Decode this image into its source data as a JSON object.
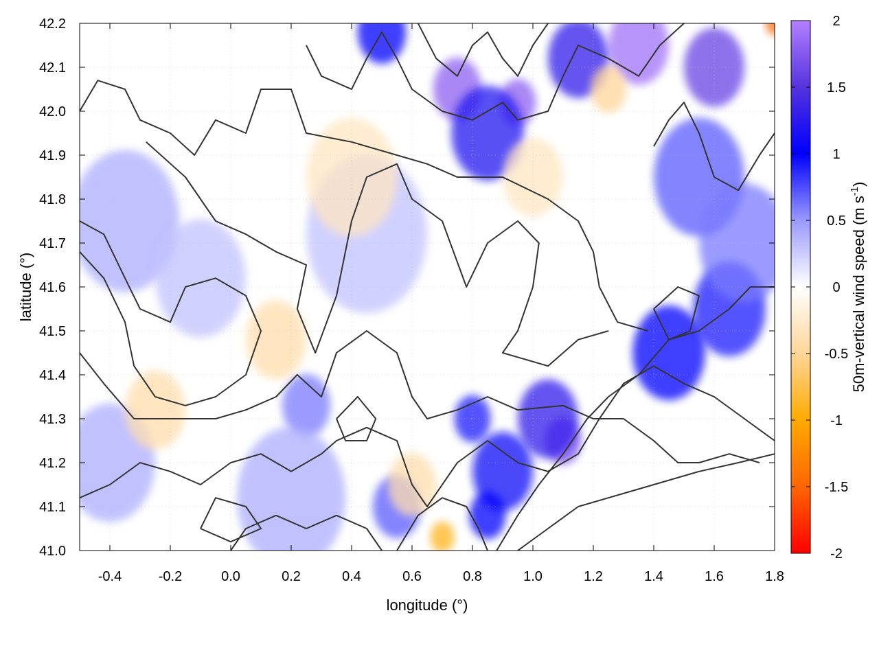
{
  "chart_data": {
    "type": "heatmap",
    "xlabel": "longitude (°)",
    "ylabel": "latitude (°)",
    "xlim": [
      -0.5,
      1.8
    ],
    "ylim": [
      41.0,
      42.2
    ],
    "x_ticks": [
      "-0.4",
      "-0.2",
      "0.0",
      "0.2",
      "0.4",
      "0.6",
      "0.8",
      "1.0",
      "1.2",
      "1.4",
      "1.6",
      "1.8"
    ],
    "x_tick_values": [
      -0.4,
      -0.2,
      0.0,
      0.2,
      0.4,
      0.6,
      0.8,
      1.0,
      1.2,
      1.4,
      1.6,
      1.8
    ],
    "y_ticks": [
      "41.0",
      "41.1",
      "41.2",
      "41.3",
      "41.4",
      "41.5",
      "41.6",
      "41.7",
      "41.8",
      "41.9",
      "42.0",
      "42.1",
      "42.2"
    ],
    "y_tick_values": [
      41.0,
      41.1,
      41.2,
      41.3,
      41.4,
      41.5,
      41.6,
      41.7,
      41.8,
      41.9,
      42.0,
      42.1,
      42.2
    ],
    "grid": true,
    "colorbar": {
      "label_main": "50m-vertical wind speed (m s",
      "label_sup": "-1",
      "label_end": ")",
      "range": [
        -2,
        2
      ],
      "ticks": [
        "2",
        "1.5",
        "1",
        "0.5",
        "0",
        "-0.5",
        "-1",
        "-1.5",
        "-2"
      ],
      "tick_values": [
        2,
        1.5,
        1,
        0.5,
        0,
        -0.5,
        -1,
        -1.5,
        -2
      ],
      "colors": [
        {
          "value": -2,
          "color": "#ff0000"
        },
        {
          "value": -1.5,
          "color": "#ff6600"
        },
        {
          "value": -1,
          "color": "#ffaa00"
        },
        {
          "value": -0.5,
          "color": "#ffd699"
        },
        {
          "value": 0,
          "color": "#ffffff"
        },
        {
          "value": 0.5,
          "color": "#9999ff"
        },
        {
          "value": 1,
          "color": "#0000ff"
        },
        {
          "value": 1.5,
          "color": "#5533dd"
        },
        {
          "value": 2,
          "color": "#b380ff"
        }
      ]
    },
    "contours": {
      "color": "#333333",
      "lines": [
        [
          [
            -0.5,
            42.0
          ],
          [
            -0.44,
            42.07
          ],
          [
            -0.35,
            42.05
          ],
          [
            -0.3,
            41.98
          ],
          [
            -0.2,
            41.95
          ],
          [
            -0.12,
            41.9
          ],
          [
            -0.05,
            41.98
          ],
          [
            0.05,
            41.95
          ],
          [
            0.1,
            42.05
          ],
          [
            0.2,
            42.05
          ],
          [
            0.25,
            41.95
          ],
          [
            0.4,
            41.93
          ],
          [
            0.55,
            41.9
          ],
          [
            0.65,
            41.88
          ],
          [
            0.75,
            41.85
          ],
          [
            0.9,
            41.85
          ],
          [
            1.05,
            41.8
          ],
          [
            1.15,
            41.75
          ],
          [
            1.2,
            41.68
          ],
          [
            1.22,
            41.6
          ],
          [
            1.28,
            41.52
          ],
          [
            1.38,
            41.5
          ]
        ],
        [
          [
            -0.28,
            41.93
          ],
          [
            -0.15,
            41.85
          ],
          [
            -0.05,
            41.75
          ],
          [
            0.05,
            41.72
          ],
          [
            0.15,
            41.68
          ],
          [
            0.25,
            41.65
          ],
          [
            0.22,
            41.55
          ],
          [
            0.28,
            41.45
          ],
          [
            0.35,
            41.58
          ],
          [
            0.4,
            41.75
          ],
          [
            0.45,
            41.85
          ],
          [
            0.55,
            41.88
          ],
          [
            0.6,
            41.8
          ],
          [
            0.7,
            41.75
          ],
          [
            0.78,
            41.6
          ],
          [
            0.85,
            41.7
          ],
          [
            0.95,
            41.75
          ],
          [
            1.02,
            41.7
          ],
          [
            1.0,
            41.6
          ],
          [
            0.95,
            41.5
          ],
          [
            0.9,
            41.45
          ],
          [
            1.05,
            41.42
          ],
          [
            1.15,
            41.48
          ],
          [
            1.25,
            41.5
          ]
        ],
        [
          [
            -0.5,
            41.75
          ],
          [
            -0.42,
            41.72
          ],
          [
            -0.35,
            41.62
          ],
          [
            -0.3,
            41.55
          ],
          [
            -0.2,
            41.52
          ],
          [
            -0.15,
            41.6
          ],
          [
            -0.05,
            41.62
          ],
          [
            0.05,
            41.58
          ],
          [
            0.1,
            41.5
          ],
          [
            0.05,
            41.4
          ],
          [
            -0.05,
            41.35
          ],
          [
            -0.15,
            41.33
          ],
          [
            -0.25,
            41.35
          ],
          [
            -0.32,
            41.42
          ],
          [
            -0.35,
            41.52
          ],
          [
            -0.42,
            41.62
          ],
          [
            -0.5,
            41.68
          ]
        ],
        [
          [
            -0.5,
            41.45
          ],
          [
            -0.42,
            41.38
          ],
          [
            -0.32,
            41.3
          ],
          [
            -0.2,
            41.3
          ],
          [
            -0.05,
            41.3
          ],
          [
            0.05,
            41.32
          ],
          [
            0.15,
            41.35
          ],
          [
            0.22,
            41.4
          ],
          [
            0.3,
            41.35
          ],
          [
            0.35,
            41.45
          ],
          [
            0.45,
            41.5
          ],
          [
            0.55,
            41.45
          ],
          [
            0.6,
            41.35
          ],
          [
            0.65,
            41.3
          ],
          [
            0.75,
            41.32
          ],
          [
            0.85,
            41.35
          ],
          [
            0.95,
            41.32
          ],
          [
            1.1,
            41.33
          ],
          [
            1.2,
            41.3
          ],
          [
            1.3,
            41.3
          ],
          [
            1.4,
            41.25
          ],
          [
            1.48,
            41.2
          ],
          [
            1.55,
            41.2
          ],
          [
            1.65,
            41.22
          ],
          [
            1.75,
            41.2
          ]
        ],
        [
          [
            -0.5,
            41.12
          ],
          [
            -0.4,
            41.15
          ],
          [
            -0.3,
            41.2
          ],
          [
            -0.2,
            41.18
          ],
          [
            -0.1,
            41.15
          ],
          [
            0.0,
            41.2
          ],
          [
            0.1,
            41.22
          ],
          [
            0.2,
            41.18
          ],
          [
            0.3,
            41.22
          ],
          [
            0.35,
            41.25
          ],
          [
            0.45,
            41.28
          ],
          [
            0.55,
            41.25
          ],
          [
            0.6,
            41.15
          ],
          [
            0.65,
            41.1
          ],
          [
            0.75,
            41.2
          ],
          [
            0.85,
            41.25
          ],
          [
            0.95,
            41.2
          ],
          [
            1.05,
            41.18
          ],
          [
            1.15,
            41.22
          ],
          [
            1.22,
            41.3
          ],
          [
            1.3,
            41.38
          ],
          [
            1.4,
            41.42
          ],
          [
            1.5,
            41.38
          ],
          [
            1.6,
            41.35
          ],
          [
            1.7,
            41.3
          ],
          [
            1.8,
            41.25
          ]
        ],
        [
          [
            0.0,
            41.0
          ],
          [
            0.05,
            41.05
          ],
          [
            0.15,
            41.08
          ],
          [
            0.25,
            41.05
          ],
          [
            0.35,
            41.08
          ],
          [
            0.45,
            41.05
          ],
          [
            0.5,
            41.0
          ]
        ],
        [
          [
            0.55,
            41.0
          ],
          [
            0.62,
            41.08
          ],
          [
            0.7,
            41.12
          ],
          [
            0.78,
            41.1
          ],
          [
            0.82,
            41.05
          ],
          [
            0.85,
            41.0
          ]
        ],
        [
          [
            0.88,
            41.0
          ],
          [
            0.95,
            41.08
          ],
          [
            1.02,
            41.15
          ],
          [
            1.1,
            41.22
          ],
          [
            1.18,
            41.3
          ],
          [
            1.25,
            41.35
          ],
          [
            1.35,
            41.4
          ],
          [
            1.45,
            41.48
          ],
          [
            1.55,
            41.5
          ],
          [
            1.65,
            41.55
          ],
          [
            1.72,
            41.6
          ],
          [
            1.8,
            41.6
          ]
        ],
        [
          [
            0.95,
            41.0
          ],
          [
            1.05,
            41.05
          ],
          [
            1.15,
            41.1
          ],
          [
            1.25,
            41.12
          ],
          [
            1.4,
            41.15
          ],
          [
            1.55,
            41.18
          ],
          [
            1.68,
            41.2
          ],
          [
            1.8,
            41.22
          ]
        ],
        [
          [
            0.25,
            42.15
          ],
          [
            0.3,
            42.08
          ],
          [
            0.4,
            42.05
          ],
          [
            0.45,
            42.12
          ],
          [
            0.5,
            42.18
          ],
          [
            0.55,
            42.12
          ],
          [
            0.6,
            42.05
          ],
          [
            0.7,
            42.0
          ],
          [
            0.8,
            41.98
          ],
          [
            0.9,
            42.02
          ],
          [
            0.95,
            41.98
          ],
          [
            1.05,
            42.0
          ],
          [
            1.1,
            42.08
          ],
          [
            1.15,
            42.15
          ],
          [
            1.25,
            42.12
          ],
          [
            1.35,
            42.08
          ],
          [
            1.42,
            42.15
          ],
          [
            1.5,
            42.2
          ]
        ],
        [
          [
            0.62,
            42.2
          ],
          [
            0.68,
            42.12
          ],
          [
            0.75,
            42.08
          ],
          [
            0.8,
            42.15
          ],
          [
            0.85,
            42.18
          ],
          [
            0.9,
            42.12
          ],
          [
            0.95,
            42.08
          ],
          [
            1.0,
            42.15
          ],
          [
            1.05,
            42.2
          ]
        ],
        [
          [
            1.4,
            41.92
          ],
          [
            1.45,
            41.98
          ],
          [
            1.5,
            42.02
          ],
          [
            1.55,
            41.95
          ],
          [
            1.6,
            41.85
          ],
          [
            1.68,
            41.82
          ],
          [
            1.75,
            41.9
          ],
          [
            1.8,
            41.95
          ]
        ],
        [
          [
            -0.1,
            41.05
          ],
          [
            -0.05,
            41.12
          ],
          [
            0.05,
            41.1
          ],
          [
            0.1,
            41.05
          ],
          [
            0.0,
            41.02
          ],
          [
            -0.1,
            41.05
          ]
        ],
        [
          [
            0.35,
            41.3
          ],
          [
            0.42,
            41.35
          ],
          [
            0.48,
            41.3
          ],
          [
            0.45,
            41.25
          ],
          [
            0.38,
            41.25
          ],
          [
            0.35,
            41.3
          ]
        ],
        [
          [
            1.4,
            41.55
          ],
          [
            1.48,
            41.6
          ],
          [
            1.55,
            41.58
          ],
          [
            1.52,
            41.5
          ],
          [
            1.45,
            41.48
          ],
          [
            1.4,
            41.55
          ]
        ]
      ]
    },
    "features": [
      {
        "x": 0.75,
        "y": 42.05,
        "v": 1.8,
        "r": 0.08
      },
      {
        "x": 0.95,
        "y": 42.02,
        "v": 1.8,
        "r": 0.06
      },
      {
        "x": 1.35,
        "y": 42.15,
        "v": 1.9,
        "r": 0.1
      },
      {
        "x": 1.6,
        "y": 42.1,
        "v": 1.6,
        "r": 0.1
      },
      {
        "x": 0.85,
        "y": 41.95,
        "v": 1.2,
        "r": 0.12
      },
      {
        "x": 1.15,
        "y": 42.12,
        "v": 1.3,
        "r": 0.1
      },
      {
        "x": 0.5,
        "y": 42.18,
        "v": 1.0,
        "r": 0.08
      },
      {
        "x": 1.1,
        "y": 41.25,
        "v": 1.7,
        "r": 0.06
      },
      {
        "x": 1.05,
        "y": 41.3,
        "v": 1.3,
        "r": 0.1
      },
      {
        "x": 0.9,
        "y": 41.18,
        "v": 1.1,
        "r": 0.1
      },
      {
        "x": 0.85,
        "y": 41.08,
        "v": 1.0,
        "r": 0.06
      },
      {
        "x": 1.45,
        "y": 41.45,
        "v": 1.0,
        "r": 0.12
      },
      {
        "x": 1.65,
        "y": 41.55,
        "v": 0.9,
        "r": 0.12
      },
      {
        "x": 1.55,
        "y": 41.85,
        "v": 0.7,
        "r": 0.15
      },
      {
        "x": 1.7,
        "y": 41.7,
        "v": 0.6,
        "r": 0.15
      },
      {
        "x": 0.8,
        "y": 41.3,
        "v": 0.9,
        "r": 0.06
      },
      {
        "x": 0.55,
        "y": 41.1,
        "v": 0.7,
        "r": 0.08
      },
      {
        "x": 0.25,
        "y": 41.33,
        "v": 0.6,
        "r": 0.08
      },
      {
        "x": -0.35,
        "y": 41.75,
        "v": 0.4,
        "r": 0.18
      },
      {
        "x": -0.4,
        "y": 41.2,
        "v": 0.4,
        "r": 0.15
      },
      {
        "x": 0.2,
        "y": 41.12,
        "v": 0.4,
        "r": 0.18
      },
      {
        "x": 0.45,
        "y": 41.72,
        "v": 0.3,
        "r": 0.2
      },
      {
        "x": -0.1,
        "y": 41.62,
        "v": 0.3,
        "r": 0.15
      },
      {
        "x": 0.15,
        "y": 41.48,
        "v": -0.4,
        "r": 0.1
      },
      {
        "x": -0.25,
        "y": 41.32,
        "v": -0.4,
        "r": 0.1
      },
      {
        "x": 0.4,
        "y": 41.85,
        "v": -0.3,
        "r": 0.15
      },
      {
        "x": 0.7,
        "y": 41.03,
        "v": -0.9,
        "r": 0.04
      },
      {
        "x": 1.8,
        "y": 42.2,
        "v": -1.5,
        "r": 0.03
      },
      {
        "x": 0.6,
        "y": 41.15,
        "v": -0.4,
        "r": 0.08
      },
      {
        "x": 1.25,
        "y": 42.05,
        "v": -0.5,
        "r": 0.06
      },
      {
        "x": 1.0,
        "y": 41.85,
        "v": -0.3,
        "r": 0.1
      }
    ]
  }
}
